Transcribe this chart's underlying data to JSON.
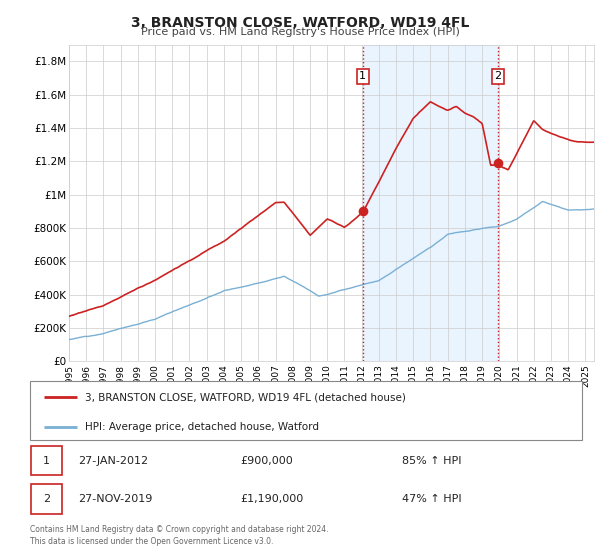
{
  "title": "3, BRANSTON CLOSE, WATFORD, WD19 4FL",
  "subtitle": "Price paid vs. HM Land Registry's House Price Index (HPI)",
  "hpi_color": "#7ab0d4",
  "price_color": "#cc2222",
  "bg_highlight_color": "#ddeeff",
  "ylim": [
    0,
    1900000
  ],
  "yticks": [
    0,
    200000,
    400000,
    600000,
    800000,
    1000000,
    1200000,
    1400000,
    1600000,
    1800000
  ],
  "ytick_labels": [
    "£0",
    "£200K",
    "£400K",
    "£600K",
    "£800K",
    "£1M",
    "£1.2M",
    "£1.4M",
    "£1.6M",
    "£1.8M"
  ],
  "sale1_x": 2012.07,
  "sale1_y": 900000,
  "sale2_x": 2019.92,
  "sale2_y": 1190000,
  "sale1_date": "27-JAN-2012",
  "sale1_price": "£900,000",
  "sale1_hpi": "85% ↑ HPI",
  "sale2_date": "27-NOV-2019",
  "sale2_price": "£1,190,000",
  "sale2_hpi": "47% ↑ HPI",
  "legend_label1": "3, BRANSTON CLOSE, WATFORD, WD19 4FL (detached house)",
  "legend_label2": "HPI: Average price, detached house, Watford",
  "footer": "Contains HM Land Registry data © Crown copyright and database right 2024.\nThis data is licensed under the Open Government Licence v3.0.",
  "xmin": 1995.0,
  "xmax": 2025.5
}
